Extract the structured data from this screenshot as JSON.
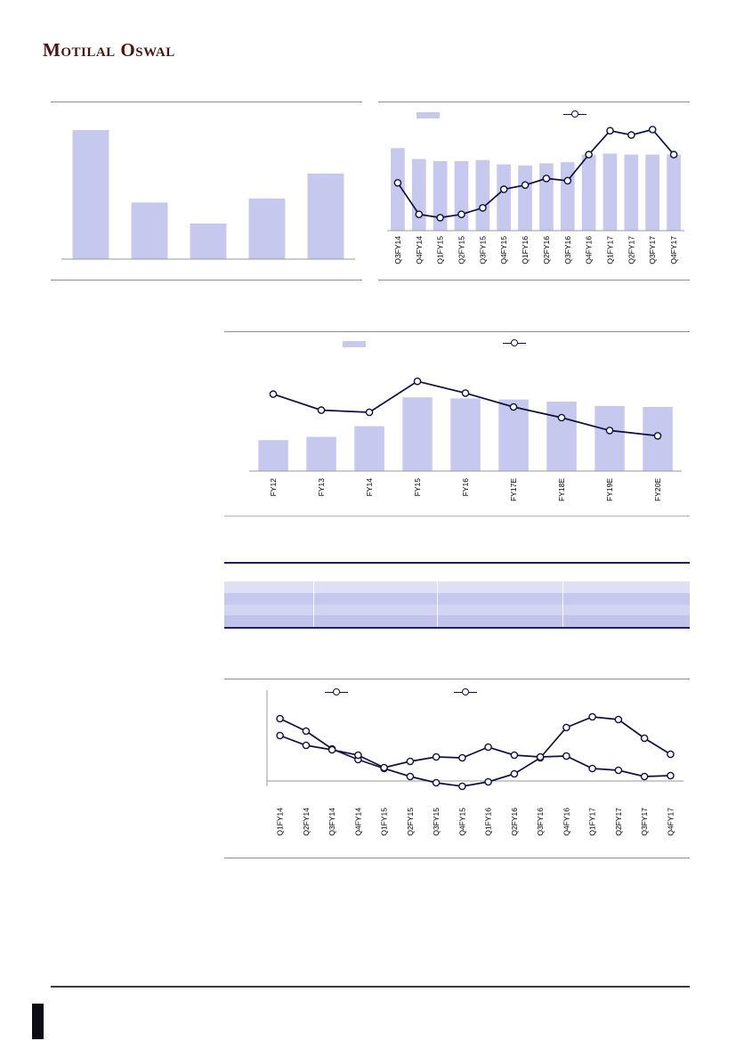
{
  "page": {
    "logo": "Motilal Oswal"
  },
  "colors": {
    "bar": "#c7c8ee",
    "line": "#10103f",
    "accent_maroon": "#4a1410"
  },
  "chart_data": [
    {
      "name": "top-left-bar-chart",
      "type": "bar",
      "title": "",
      "categories": [
        "",
        "",
        "",
        "",
        ""
      ],
      "values": [
        98,
        43,
        27,
        46,
        65
      ],
      "ylim": [
        0,
        100
      ]
    },
    {
      "name": "top-right-quarterly-bar-line-chart",
      "type": "bar",
      "title": "",
      "categories": [
        "Q3FY14",
        "Q4FY14",
        "Q1FY15",
        "Q2FY15",
        "Q3FY15",
        "Q4FY15",
        "Q1FY16",
        "Q2FY16",
        "Q3FY16",
        "Q4FY16",
        "Q1FY17",
        "Q2FY17",
        "Q3FY17",
        "Q4FY17"
      ],
      "values": [
        76,
        66,
        64,
        64,
        65,
        61,
        60,
        62,
        63,
        70,
        71,
        70,
        70,
        70
      ],
      "series": [
        {
          "name": "",
          "type": "line",
          "values": [
            44,
            15,
            12,
            15,
            21,
            38,
            42,
            48,
            46,
            70,
            92,
            88,
            93,
            70
          ]
        }
      ],
      "ylim": [
        0,
        100
      ],
      "legend_position": "top"
    },
    {
      "name": "middle-annual-bar-line-chart",
      "type": "bar",
      "title": "",
      "categories": [
        "FY12",
        "FY13",
        "FY14",
        "FY15",
        "FY16",
        "FY17E",
        "FY18E",
        "FY19E",
        "FY20E"
      ],
      "values": [
        29,
        32,
        42,
        69,
        68,
        67,
        65,
        61,
        60
      ],
      "series": [
        {
          "name": "",
          "type": "line",
          "values": [
            72,
            57,
            55,
            84,
            73,
            60,
            50,
            38,
            33
          ]
        }
      ],
      "ylim": [
        0,
        100
      ],
      "legend_position": "top"
    },
    {
      "name": "bottom-quarterly-two-line-chart",
      "type": "line",
      "title": "",
      "categories": [
        "Q1FY14",
        "Q2FY14",
        "Q3FY14",
        "Q4FY14",
        "Q1FY15",
        "Q2FY15",
        "Q3FY15",
        "Q4FY15",
        "Q1FY16",
        "Q2FY16",
        "Q3FY16",
        "Q4FY16",
        "Q1FY17",
        "Q2FY17",
        "Q3FY17",
        "Q4FY17"
      ],
      "series": [
        {
          "name": "",
          "type": "line",
          "values": [
            70,
            56,
            36,
            24,
            14,
            5,
            -2,
            -6,
            -1,
            8,
            26,
            60,
            72,
            69,
            48,
            30
          ]
        },
        {
          "name": "",
          "type": "line",
          "values": [
            51,
            40,
            35,
            29,
            15,
            22,
            27,
            26,
            38,
            29,
            27,
            28,
            14,
            12,
            5,
            6
          ]
        }
      ],
      "ylim": [
        -12,
        80
      ],
      "legend_position": "top"
    }
  ],
  "table": {
    "columns": [
      "",
      "",
      "",
      ""
    ],
    "rows": [
      [
        "",
        "",
        "",
        ""
      ],
      [
        "",
        "",
        "",
        ""
      ],
      [
        "",
        "",
        "",
        ""
      ],
      [
        "",
        "",
        "",
        ""
      ]
    ]
  }
}
